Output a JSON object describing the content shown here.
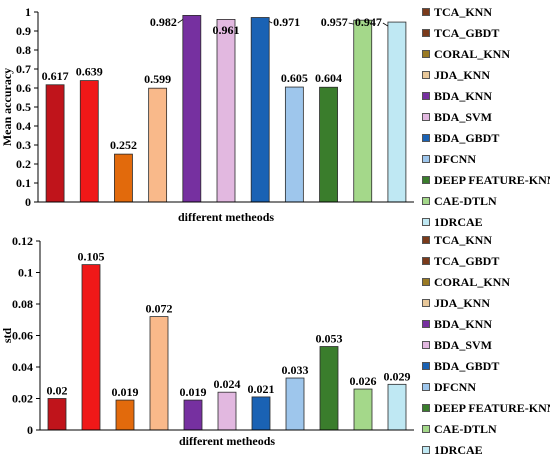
{
  "chart_data": [
    {
      "type": "bar",
      "ylabel": "Mean accuracy",
      "xlabel": "different metheods",
      "ylim": [
        0,
        1
      ],
      "yticks": [
        "0",
        "0.1",
        "0.2",
        "0.3",
        "0.4",
        "0.5",
        "0.6",
        "0.7",
        "0.8",
        "0.9",
        "1"
      ],
      "grid": false,
      "legend_position": "right",
      "categories": [
        "TCA_KNN",
        "TCA_GBDT",
        "CORAL_KNN",
        "JDA_KNN",
        "BDA_KNN",
        "BDA_SVM",
        "BDA_GBDT",
        "DFCNN",
        "DEEP FEATURE-KNN",
        "CAE-DTLN",
        "1DRCAE"
      ],
      "values": [
        0.617,
        0.639,
        0.252,
        0.599,
        0.982,
        0.961,
        0.971,
        0.605,
        0.604,
        0.957,
        0.947
      ],
      "data_labels": [
        "0.617",
        "0.639",
        "0.252",
        "0.599",
        "0.982",
        "0.961",
        "0.971",
        "0.605",
        "0.604",
        "0.957",
        "0.947"
      ],
      "colors": [
        "#c0141b",
        "#f01818",
        "#e26a0c",
        "#f9b98a",
        "#7630a0",
        "#e2b8e0",
        "#1a62b4",
        "#9ec6ec",
        "#3a7d2c",
        "#a4d88a",
        "#bfe8f3"
      ]
    },
    {
      "type": "bar",
      "ylabel": "std",
      "xlabel": "different metheods",
      "ylim": [
        0,
        0.12
      ],
      "yticks": [
        "0",
        "0.02",
        "0.04",
        "0.06",
        "0.08",
        "0.1",
        "0.12"
      ],
      "grid": false,
      "legend_position": "right",
      "categories": [
        "TCA_KNN",
        "TCA_GBDT",
        "CORAL_KNN",
        "JDA_KNN",
        "BDA_KNN",
        "BDA_SVM",
        "BDA_GBDT",
        "DFCNN",
        "DEEP FEATURE-KNN",
        "CAE-DTLN",
        "1DRCAE"
      ],
      "values": [
        0.02,
        0.105,
        0.019,
        0.072,
        0.019,
        0.024,
        0.021,
        0.033,
        0.053,
        0.026,
        0.029
      ],
      "data_labels": [
        "0.02",
        "0.105",
        "0.019",
        "0.072",
        "0.019",
        "0.024",
        "0.021",
        "0.033",
        "0.053",
        "0.026",
        "0.029"
      ],
      "colors": [
        "#c0141b",
        "#f01818",
        "#e26a0c",
        "#f9b98a",
        "#7630a0",
        "#e2b8e0",
        "#1a62b4",
        "#9ec6ec",
        "#3a7d2c",
        "#a4d88a",
        "#bfe8f3"
      ]
    }
  ],
  "legend_swatch_colors": [
    "#7a3a1a",
    "#7a3a1a",
    "#9a7a24",
    "#e8c89a",
    "#7630a0",
    "#e2b8e0",
    "#1a62b4",
    "#9ec6ec",
    "#3a7d2c",
    "#a4d88a",
    "#bfe8f3"
  ]
}
